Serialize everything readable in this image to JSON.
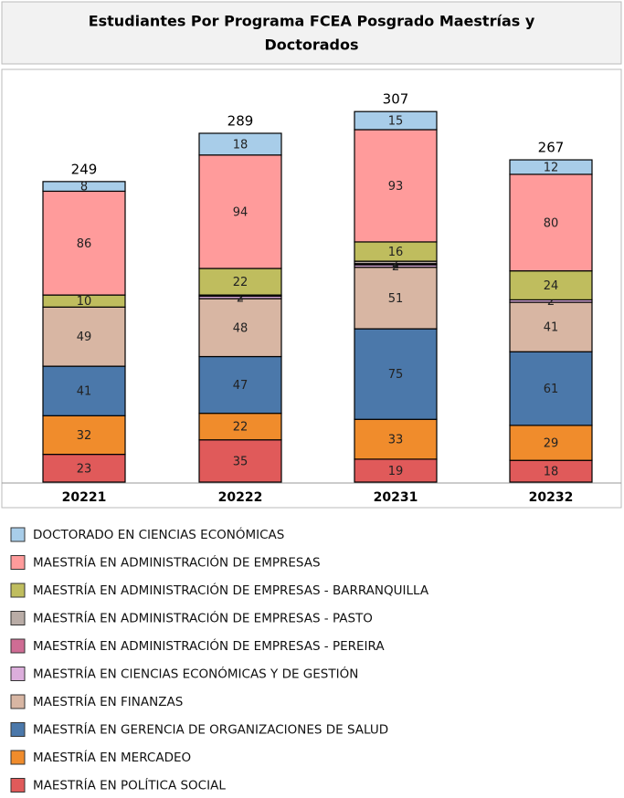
{
  "chart_data": {
    "type": "bar",
    "stacked": true,
    "title_lines": [
      "Estudiantes Por Programa FCEA Posgrado Maestrías  y",
      "Doctorados"
    ],
    "categories": [
      "20221",
      "20222",
      "20231",
      "20232"
    ],
    "totals": [
      249,
      289,
      307,
      267
    ],
    "ylim": [
      0,
      320
    ],
    "series": [
      {
        "name": "MAESTRÍA EN POLÍTICA SOCIAL",
        "color": "#e05a5a",
        "values": [
          23,
          35,
          19,
          18
        ]
      },
      {
        "name": "MAESTRÍA EN MERCADEO",
        "color": "#f08c2c",
        "values": [
          32,
          22,
          33,
          29
        ]
      },
      {
        "name": "MAESTRÍA EN GERENCIA DE ORGANIZACIONES DE SALUD",
        "color": "#4b78aa",
        "values": [
          41,
          47,
          75,
          61
        ]
      },
      {
        "name": "MAESTRÍA EN FINANZAS",
        "color": "#d8b6a3",
        "values": [
          49,
          48,
          51,
          41
        ]
      },
      {
        "name": "MAESTRÍA EN CIENCIAS ECONÓMICAS Y DE GESTIÓN",
        "color": "#dcaedc",
        "values": [
          0,
          2,
          2,
          2
        ]
      },
      {
        "name": "MAESTRÍA EN ADMINISTRACIÓN DE EMPRESAS - PEREIRA",
        "color": "#cf6c94",
        "values": [
          0,
          0,
          1,
          0
        ]
      },
      {
        "name": "MAESTRÍA EN ADMINISTRACIÓN DE EMPRESAS - PASTO",
        "color": "#b9aca6",
        "values": [
          0,
          1,
          2,
          0
        ]
      },
      {
        "name": "MAESTRÍA EN ADMINISTRACIÓN DE EMPRESAS - BARRANQUILLA",
        "color": "#bfbd5e",
        "values": [
          10,
          22,
          16,
          24
        ]
      },
      {
        "name": "MAESTRÍA EN ADMINISTRACIÓN DE EMPRESAS",
        "color": "#ff9b9b",
        "values": [
          86,
          94,
          93,
          80
        ]
      },
      {
        "name": "DOCTORADO EN CIENCIAS ECONÓMICAS",
        "color": "#a8cde9",
        "values": [
          8,
          18,
          15,
          12
        ]
      }
    ]
  }
}
